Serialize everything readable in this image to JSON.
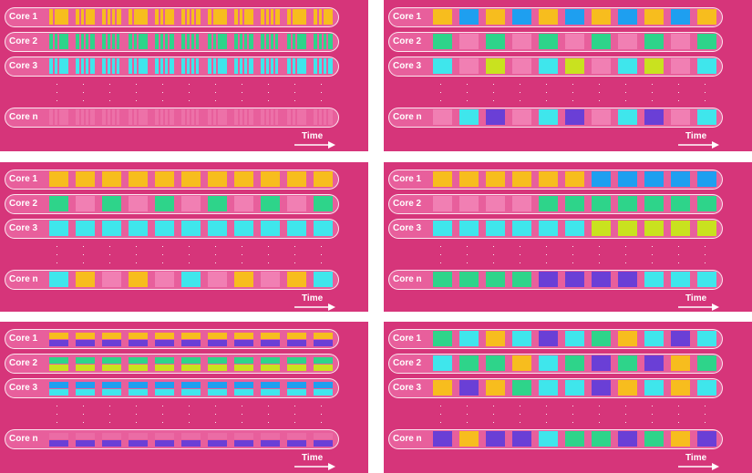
{
  "labels": {
    "core1": "Core 1",
    "core2": "Core 2",
    "core3": "Core 3",
    "coren": "Core n",
    "time": "Time"
  },
  "colors": {
    "background": "#d6357a",
    "lane": "#e85f9c",
    "yellow": "#f7bd1e",
    "green": "#2ed48a",
    "cyan": "#3fe6ec",
    "blue": "#1e9ff0",
    "purple": "#6a3fd6",
    "lime": "#c9e21f",
    "pink": "#f17fb3"
  },
  "panels": [
    {
      "id": "fine-interleaved",
      "pattern": "thin-stripes"
    },
    {
      "id": "round-robin",
      "pattern": "alternating-tasks"
    },
    {
      "id": "periodic",
      "pattern": "periodic-tasks"
    },
    {
      "id": "phase-change",
      "pattern": "task-phases"
    },
    {
      "id": "split-slots",
      "pattern": "two-tasks-per-slot"
    },
    {
      "id": "mixed-random",
      "pattern": "mixed-tasks"
    }
  ]
}
